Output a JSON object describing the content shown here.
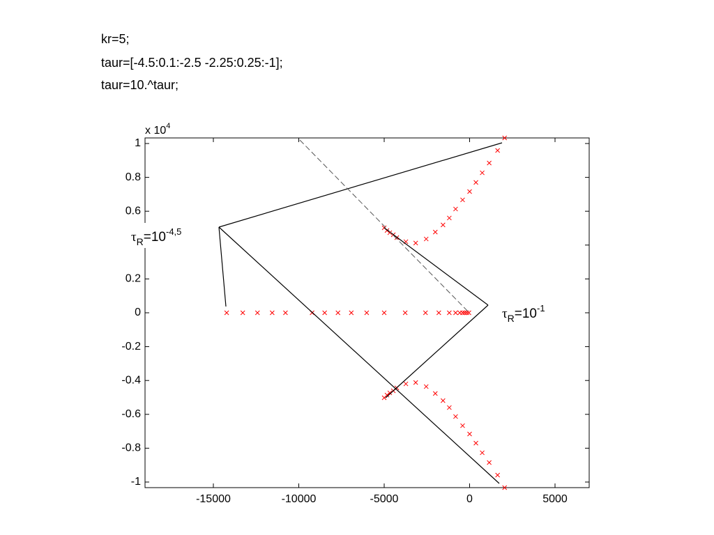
{
  "code": [
    "kr=5;",
    "taur=[-4.5:0.1:-2.5 -2.25:0.25:-1];",
    "taur=10.^taur;"
  ],
  "chart_data": {
    "type": "scatter",
    "y_multiplier": {
      "base": "x 10",
      "exp": "4"
    },
    "annotations": [
      {
        "base": "τ",
        "sub": "R",
        "text": "=10",
        "sup": "-4,5"
      },
      {
        "base": "τ",
        "sub": "R",
        "text": "=10",
        "sup": "-1"
      }
    ],
    "xlim": [
      -19000,
      7000
    ],
    "xticks": [
      -15000,
      -10000,
      -5000,
      0,
      5000
    ],
    "ylim": [
      -1.033,
      1.033
    ],
    "yticks": [
      1,
      0.8,
      0.6,
      0.4,
      0.2,
      0,
      -0.2,
      -0.4,
      -0.6,
      -0.8,
      -1
    ],
    "x": [
      -14221,
      -13279,
      -12418,
      -11557,
      -10779,
      -9221,
      -8484,
      -7705,
      -6926,
      -6025,
      -5000,
      -3770,
      -2582,
      -1803,
      -1189,
      -820,
      -574,
      -410,
      -287,
      -164,
      -41,
      -5000,
      -4836,
      -4672,
      -4467,
      -4262,
      -3730,
      -3156,
      -2541,
      -2008,
      -1557,
      -1189,
      -820,
      -410,
      0,
      369,
      738,
      1148,
      1639,
      2049,
      -5000,
      -4836,
      -4672,
      -4467,
      -4262,
      -3730,
      -3156,
      -2541,
      -2008,
      -1557,
      -1189,
      -820,
      -410,
      0,
      369,
      738,
      1148,
      1639,
      2049
    ],
    "series": [
      {
        "color": "#ff0000",
        "values": [
          0,
          0,
          0,
          0,
          0,
          0,
          0,
          0,
          0,
          0,
          0,
          0,
          0,
          0,
          0,
          0,
          0,
          0,
          0,
          0,
          0,
          0.502,
          0.486,
          0.473,
          0.461,
          0.444,
          0.42,
          0.412,
          0.436,
          0.477,
          0.519,
          0.56,
          0.613,
          0.667,
          0.716,
          0.77,
          0.827,
          0.885,
          0.959,
          1.033,
          -0.502,
          -0.486,
          -0.473,
          -0.461,
          -0.444,
          -0.42,
          -0.412,
          -0.436,
          -0.477,
          -0.519,
          -0.56,
          -0.613,
          -0.667,
          -0.716,
          -0.77,
          -0.827,
          -0.885,
          -0.959,
          -1.033
        ]
      }
    ]
  }
}
